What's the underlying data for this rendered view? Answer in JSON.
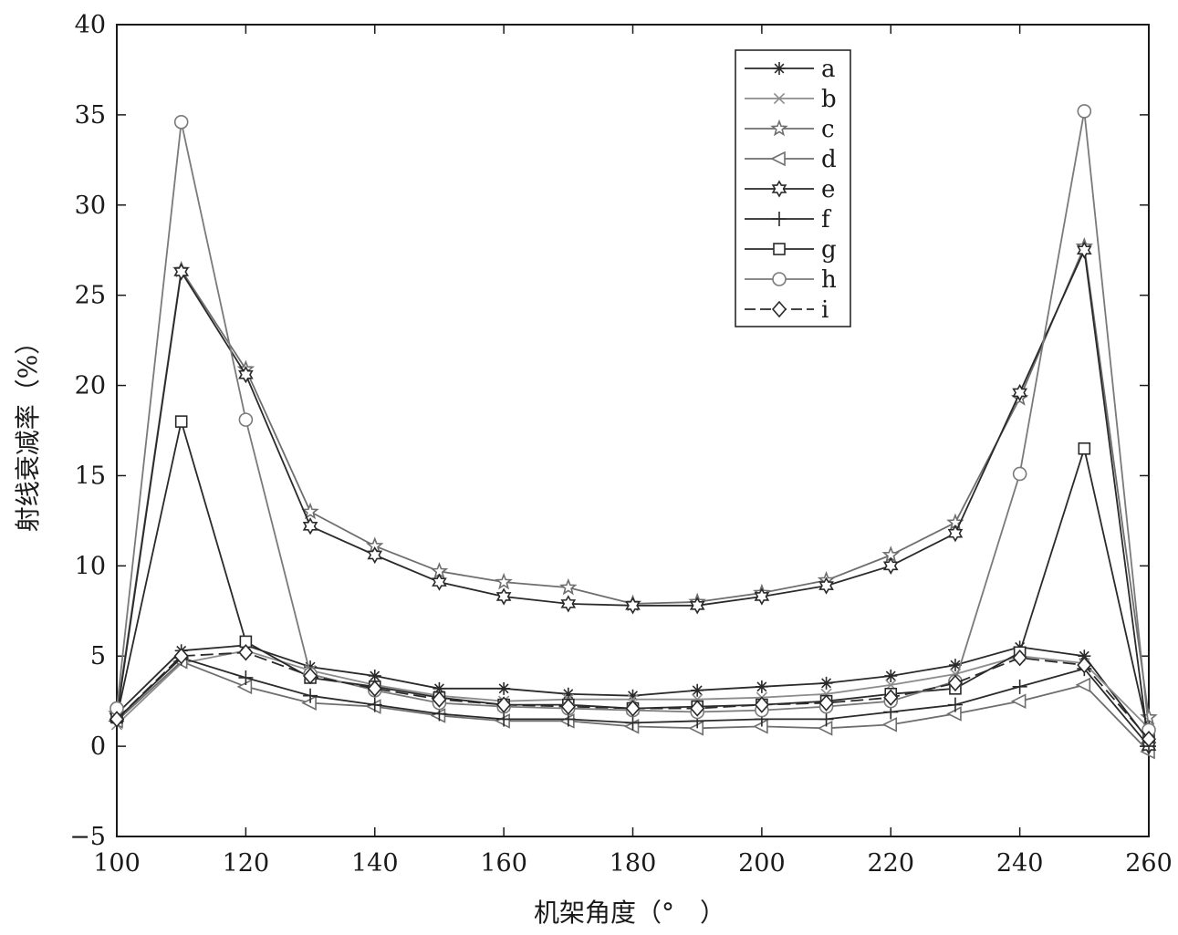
{
  "chart_data": {
    "type": "line",
    "xlabel": "机架角度（°　）",
    "ylabel": "射线衰减率（%）",
    "xlim": [
      100,
      260
    ],
    "ylim": [
      -5,
      40
    ],
    "x_ticks": [
      "100",
      "120",
      "140",
      "160",
      "180",
      "200",
      "220",
      "240",
      "260"
    ],
    "y_ticks": [
      "−5",
      "0",
      "5",
      "10",
      "15",
      "20",
      "25",
      "30",
      "35",
      "40"
    ],
    "grid": false,
    "legend_position": "top-right",
    "x": [
      100,
      110,
      120,
      130,
      140,
      150,
      160,
      170,
      180,
      190,
      200,
      210,
      220,
      230,
      240,
      250,
      260
    ],
    "series": [
      {
        "name": "a",
        "marker": "asterisk",
        "color": "#2a2a2a",
        "dash": "solid",
        "values": [
          1.8,
          5.3,
          5.6,
          4.4,
          3.9,
          3.2,
          3.2,
          2.9,
          2.8,
          3.1,
          3.3,
          3.5,
          3.9,
          4.5,
          5.5,
          5.0,
          0.3
        ]
      },
      {
        "name": "b",
        "marker": "x",
        "color": "#8c8c8c",
        "dash": "solid",
        "values": [
          1.2,
          4.6,
          5.3,
          4.2,
          3.4,
          2.8,
          2.5,
          2.6,
          2.6,
          2.6,
          2.7,
          2.9,
          3.4,
          4.0,
          5.0,
          4.6,
          1.0
        ]
      },
      {
        "name": "c",
        "marker": "star",
        "color": "#6e6e6e",
        "dash": "solid",
        "values": [
          1.8,
          26.4,
          20.9,
          13.0,
          11.1,
          9.7,
          9.1,
          8.8,
          7.9,
          8.0,
          8.5,
          9.2,
          10.6,
          12.4,
          19.3,
          27.7,
          1.6
        ]
      },
      {
        "name": "d",
        "marker": "triangle-left",
        "color": "#6e6e6e",
        "dash": "solid",
        "values": [
          1.4,
          4.7,
          3.3,
          2.4,
          2.2,
          1.7,
          1.4,
          1.4,
          1.1,
          1.0,
          1.1,
          1.0,
          1.2,
          1.8,
          2.5,
          3.4,
          -0.3
        ]
      },
      {
        "name": "e",
        "marker": "hexagram",
        "color": "#2a2a2a",
        "dash": "solid",
        "values": [
          1.6,
          26.3,
          20.6,
          12.2,
          10.6,
          9.1,
          8.3,
          7.9,
          7.8,
          7.8,
          8.3,
          8.9,
          10.0,
          11.8,
          19.6,
          27.5,
          0.0
        ]
      },
      {
        "name": "f",
        "marker": "plus",
        "color": "#2a2a2a",
        "dash": "solid",
        "values": [
          1.5,
          4.9,
          3.8,
          2.8,
          2.3,
          1.8,
          1.5,
          1.5,
          1.3,
          1.4,
          1.5,
          1.5,
          1.9,
          2.3,
          3.3,
          4.3,
          0.0
        ]
      },
      {
        "name": "g",
        "marker": "square",
        "color": "#2a2a2a",
        "dash": "solid",
        "values": [
          1.6,
          18.0,
          5.8,
          3.8,
          3.3,
          2.7,
          2.3,
          2.3,
          2.1,
          2.2,
          2.3,
          2.5,
          2.9,
          3.2,
          5.2,
          16.5,
          0.6
        ]
      },
      {
        "name": "h",
        "marker": "circle",
        "color": "#7a7a7a",
        "dash": "solid",
        "values": [
          2.1,
          34.6,
          18.1,
          4.0,
          3.1,
          2.4,
          2.2,
          2.1,
          2.0,
          1.9,
          2.0,
          2.2,
          2.5,
          3.6,
          15.1,
          35.2,
          0.9
        ]
      },
      {
        "name": "i",
        "marker": "diamond",
        "color": "#2a2a2a",
        "dash": "dashed",
        "values": [
          1.5,
          5.0,
          5.2,
          3.9,
          3.2,
          2.6,
          2.3,
          2.2,
          2.1,
          2.1,
          2.3,
          2.4,
          2.7,
          3.5,
          4.9,
          4.5,
          0.4
        ]
      }
    ]
  }
}
